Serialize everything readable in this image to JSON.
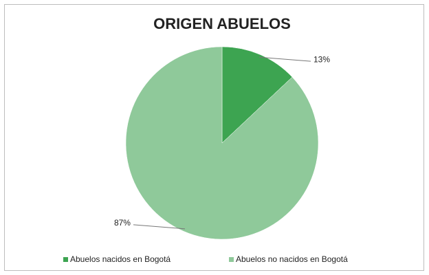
{
  "chart_data": {
    "type": "pie",
    "title": "ORIGEN ABUELOS",
    "categories": [
      "Abuelos nacidos en Bogotá",
      "Abuelos no nacidos en Bogotá"
    ],
    "values": [
      13,
      87
    ],
    "value_labels": [
      "13%",
      "87%"
    ],
    "colors": [
      "#3da451",
      "#8fc99a"
    ],
    "legend": "bottom"
  }
}
